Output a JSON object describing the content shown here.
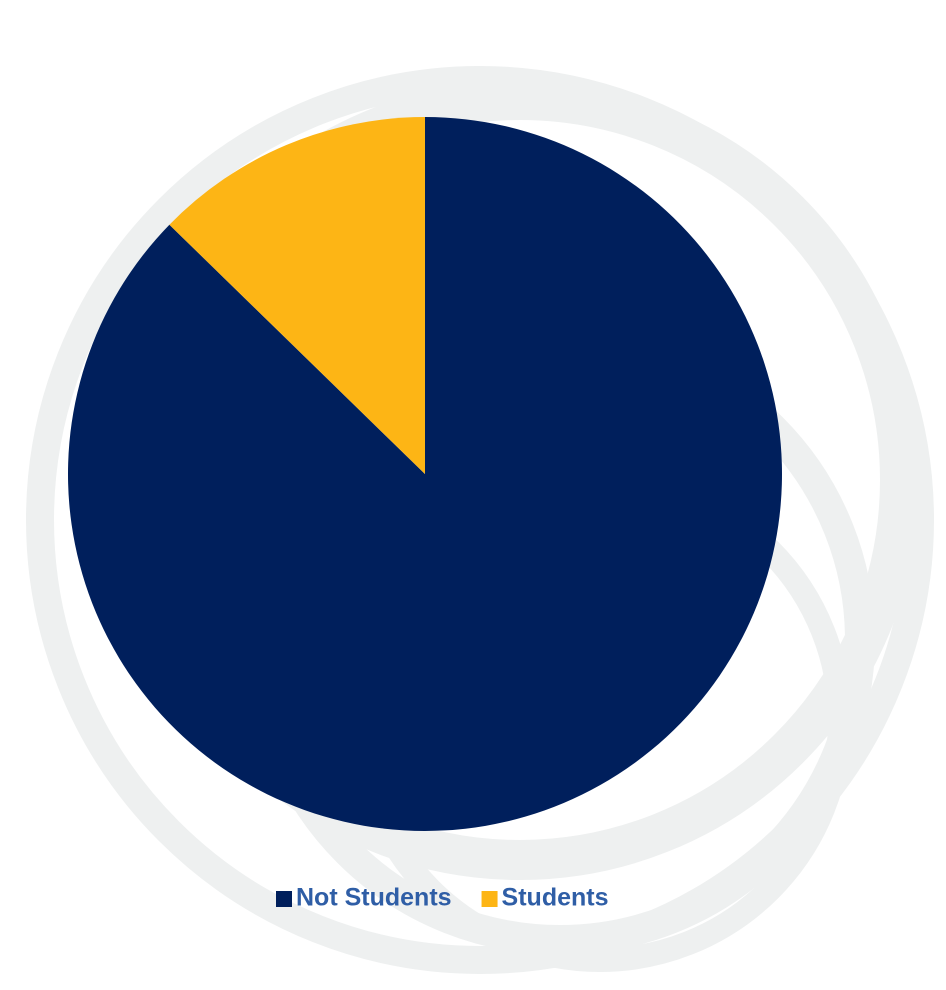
{
  "chart_data": {
    "type": "pie",
    "categories": [
      "Not Students",
      "Students"
    ],
    "values": [
      87.3,
      12.7
    ],
    "colors": [
      "#001f5c",
      "#fdb515"
    ],
    "legend": "bottom"
  }
}
